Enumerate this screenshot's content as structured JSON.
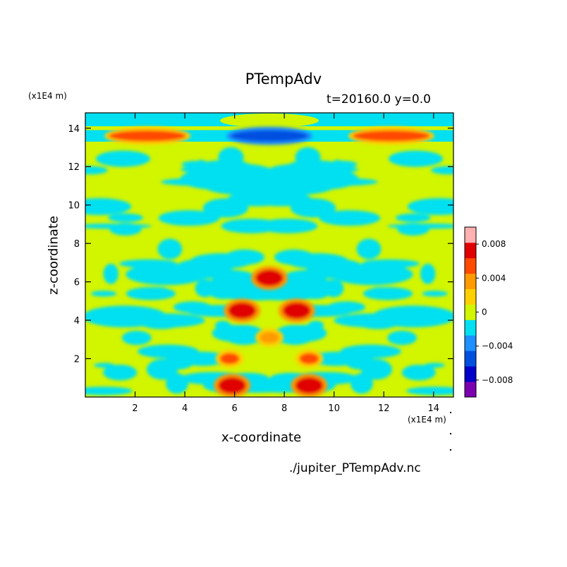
{
  "chart_data": {
    "type": "heatmap",
    "title": "PTempAdv",
    "subtitle": "t=20160.0 y=0.0",
    "xlabel": "x-coordinate",
    "ylabel": "z-coordinate",
    "x_unit": "(x1E4 m)",
    "y_unit": "(x1E4 m)",
    "xlim": [
      0,
      14.8
    ],
    "ylim": [
      0,
      14.8
    ],
    "x_ticks": [
      2,
      4,
      6,
      8,
      10,
      12,
      14
    ],
    "y_ticks": [
      2,
      4,
      6,
      8,
      10,
      12,
      14
    ],
    "colorbar": {
      "levels": [
        -0.01,
        -0.008,
        -0.006,
        -0.004,
        -0.002,
        0,
        0.002,
        0.004,
        0.006,
        0.008,
        0.01
      ],
      "colors": [
        "#7a00b0",
        "#0000c8",
        "#0050e0",
        "#1e90ff",
        "#00e0f0",
        "#d2f500",
        "#ffd000",
        "#ff9a00",
        "#ff4a00",
        "#e00000",
        "#ffb0b0"
      ],
      "tick_labels": [
        {
          "value": 0.008,
          "label": "0.008"
        },
        {
          "value": 0.004,
          "label": "0.004"
        },
        {
          "value": 0,
          "label": "0"
        },
        {
          "value": -0.004,
          "label": "−0.004"
        },
        {
          "value": -0.008,
          "label": "−0.008"
        }
      ]
    },
    "features": [
      {
        "x": 7.4,
        "z": 6.2,
        "value": 0.0095
      },
      {
        "x": 6.3,
        "z": 4.5,
        "value": 0.0095
      },
      {
        "x": 8.5,
        "z": 4.5,
        "value": 0.0095
      },
      {
        "x": 7.4,
        "z": 3.1,
        "value": 0.005
      },
      {
        "x": 5.8,
        "z": 2.0,
        "value": 0.006
      },
      {
        "x": 9.0,
        "z": 2.0,
        "value": 0.006
      },
      {
        "x": 5.9,
        "z": 0.6,
        "value": 0.0095
      },
      {
        "x": 9.0,
        "z": 0.6,
        "value": 0.0095
      },
      {
        "x": 7.4,
        "z": 13.6,
        "value": -0.005
      },
      {
        "x": 2.5,
        "z": 13.6,
        "value": 0.006
      },
      {
        "x": 12.3,
        "z": 13.6,
        "value": 0.006
      }
    ]
  },
  "source_file": "./jupiter_PTempAdv.nc"
}
